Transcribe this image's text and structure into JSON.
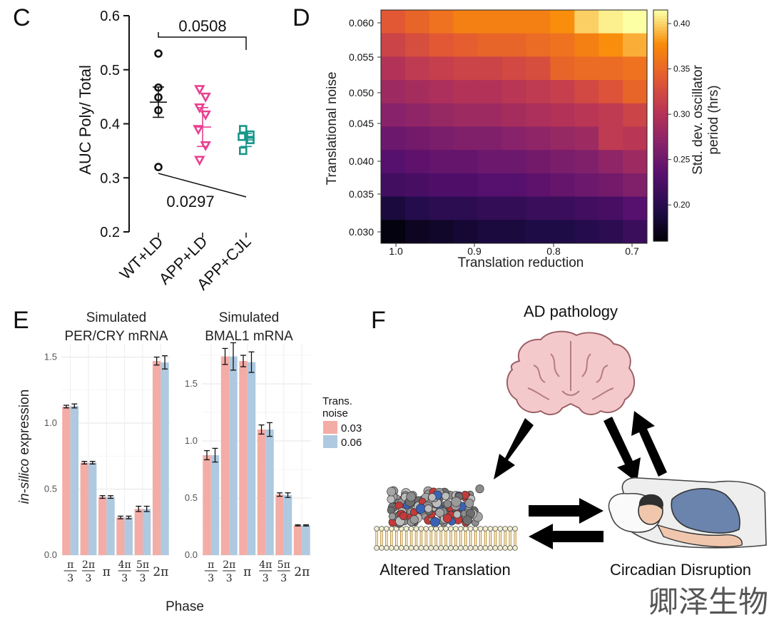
{
  "panel_letters": {
    "c": "C",
    "d": "D",
    "e": "E",
    "f": "F"
  },
  "watermark": "卿泽生物",
  "chart_data": [
    {
      "panel": "C",
      "type": "scatter",
      "ylabel": "AUC Poly/ Total",
      "ylim": [
        0.2,
        0.6
      ],
      "yticks": [
        0.2,
        0.3,
        0.4,
        0.5,
        0.6
      ],
      "categories": [
        "WT+LD",
        "APP+LD",
        "APP+CJL"
      ],
      "colors": [
        "#111111",
        "#e8408f",
        "#18968a"
      ],
      "markers": [
        "circle",
        "triangle-down",
        "square"
      ],
      "points": [
        [
          0.53,
          0.467,
          0.449,
          0.425,
          0.32
        ],
        [
          0.464,
          0.45,
          0.43,
          0.417,
          0.39,
          0.36,
          0.333
        ],
        [
          0.39,
          0.38,
          0.376,
          0.37,
          0.35
        ]
      ],
      "means": [
        0.44,
        0.394,
        0.37
      ],
      "errors": [
        0.028,
        0.036,
        0.012
      ],
      "annotations": [
        {
          "text": "0.0508",
          "from": 0,
          "to": 2,
          "type": "bracket-top"
        },
        {
          "text": "0.0297",
          "from": 0,
          "to": 2,
          "type": "line-bottom"
        }
      ]
    },
    {
      "panel": "D",
      "type": "heatmap",
      "xlabel": "Translation reduction",
      "ylabel": "Translational noise",
      "x_ticks": [
        "1.0",
        "0.9",
        "0.8",
        "0.7"
      ],
      "y_ticks": [
        "0.030",
        "0.035",
        "0.040",
        "0.045",
        "0.050",
        "0.055",
        "0.060"
      ],
      "colorbar_label_lines": [
        "Std. dev. oscillator",
        "period (hrs)"
      ],
      "colorbar_ticks": [
        0.2,
        0.25,
        0.3,
        0.35,
        0.4
      ],
      "colorbar_tick_labels": [
        "0.20",
        "0.25",
        "0.30",
        "0.35",
        "0.40"
      ],
      "colorbar_range": [
        0.16,
        0.415
      ],
      "n_cols": 11,
      "values_top_to_bottom": [
        [
          0.34,
          0.35,
          0.36,
          0.37,
          0.37,
          0.37,
          0.37,
          0.38,
          0.4,
          0.41,
          0.415
        ],
        [
          0.32,
          0.33,
          0.34,
          0.345,
          0.35,
          0.35,
          0.355,
          0.36,
          0.37,
          0.38,
          0.39
        ],
        [
          0.3,
          0.31,
          0.315,
          0.32,
          0.32,
          0.325,
          0.33,
          0.35,
          0.355,
          0.355,
          0.36
        ],
        [
          0.285,
          0.29,
          0.295,
          0.3,
          0.3,
          0.305,
          0.31,
          0.315,
          0.325,
          0.335,
          0.35
        ],
        [
          0.27,
          0.275,
          0.28,
          0.285,
          0.285,
          0.29,
          0.295,
          0.3,
          0.305,
          0.31,
          0.32
        ],
        [
          0.25,
          0.255,
          0.26,
          0.265,
          0.265,
          0.27,
          0.275,
          0.28,
          0.285,
          0.31,
          0.305
        ],
        [
          0.235,
          0.24,
          0.245,
          0.245,
          0.25,
          0.25,
          0.255,
          0.26,
          0.265,
          0.275,
          0.285
        ],
        [
          0.22,
          0.225,
          0.23,
          0.23,
          0.235,
          0.235,
          0.24,
          0.245,
          0.25,
          0.255,
          0.265
        ],
        [
          0.19,
          0.2,
          0.205,
          0.205,
          0.21,
          0.21,
          0.215,
          0.215,
          0.22,
          0.225,
          0.235
        ],
        [
          0.165,
          0.175,
          0.18,
          0.185,
          0.19,
          0.19,
          0.195,
          0.195,
          0.2,
          0.205,
          0.215
        ]
      ]
    },
    {
      "panel": "E-left",
      "type": "bar",
      "title_lines": [
        "Simulated",
        "PER/CRY mRNA"
      ],
      "ylabel_italic": "in-silico",
      "ylabel_rest": " expression",
      "xlabel": "Phase",
      "ylim": [
        0,
        1.6
      ],
      "yticks": [
        0,
        0.5,
        1.0,
        1.5
      ],
      "ytick_labels": [
        "0.0",
        "0.5",
        "1.0",
        "1.5"
      ],
      "categories": [
        "π/3",
        "2π/3",
        "π",
        "4π/3",
        "5π/3",
        "2π"
      ],
      "series": [
        {
          "name": "0.03",
          "values": [
            1.125,
            0.7,
            0.44,
            0.285,
            0.35,
            1.47
          ],
          "errors": [
            0.01,
            0.01,
            0.01,
            0.01,
            0.02,
            0.03
          ]
        },
        {
          "name": "0.06",
          "values": [
            1.13,
            0.7,
            0.44,
            0.285,
            0.35,
            1.46
          ],
          "errors": [
            0.015,
            0.01,
            0.01,
            0.01,
            0.02,
            0.05
          ]
        }
      ]
    },
    {
      "panel": "E-right",
      "type": "bar",
      "title_lines": [
        "Simulated",
        "BMAL1 mRNA"
      ],
      "ylim": [
        0,
        1.85
      ],
      "yticks": [
        0,
        0.5,
        1.0,
        1.5
      ],
      "ytick_labels": [
        "0.0",
        "0.5",
        "1.0",
        "1.5"
      ],
      "categories": [
        "π/3",
        "2π/3",
        "π",
        "4π/3",
        "5π/3",
        "2π"
      ],
      "series": [
        {
          "name": "0.03",
          "values": [
            0.875,
            1.74,
            1.7,
            1.1,
            0.53,
            0.26
          ],
          "errors": [
            0.04,
            0.07,
            0.05,
            0.04,
            0.015,
            0.005
          ]
        },
        {
          "name": "0.06",
          "values": [
            0.875,
            1.74,
            1.69,
            1.1,
            0.525,
            0.26
          ],
          "errors": [
            0.06,
            0.12,
            0.09,
            0.06,
            0.02,
            0.005
          ]
        }
      ],
      "legend": {
        "title_lines": [
          "Trans.",
          "noise"
        ],
        "entries": [
          "0.03",
          "0.06"
        ],
        "colors": [
          "#f4aca6",
          "#aec9e0"
        ]
      }
    }
  ],
  "diagram_f": {
    "top_label": "AD pathology",
    "left_label": "Altered Translation",
    "right_label": "Circadian Disruption"
  }
}
